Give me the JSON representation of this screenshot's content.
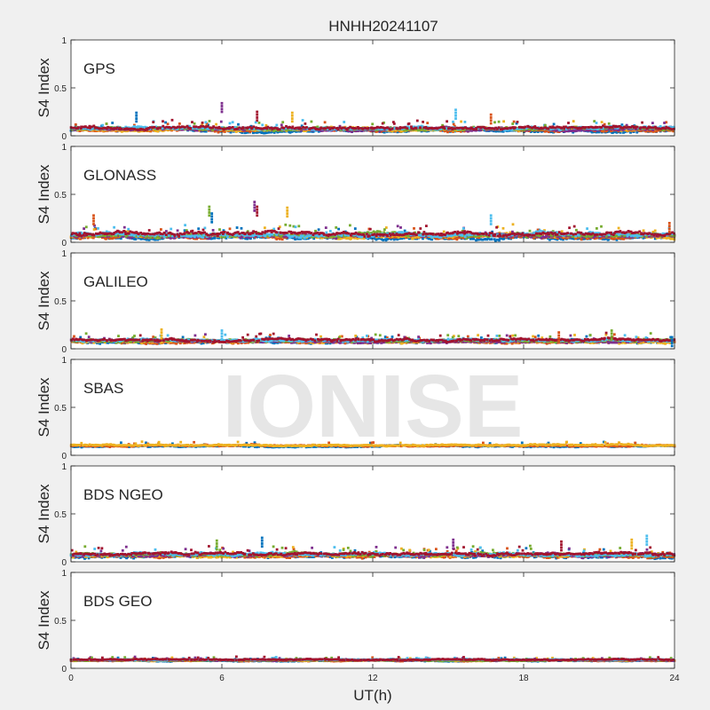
{
  "title": "HNHH20241107",
  "watermark": "IONISE",
  "colors": {
    "background": "#f0f0f0",
    "axes_bg": "#ffffff",
    "axis": "#262626",
    "watermark": "#e6e6e6",
    "palette": [
      "#0072bd",
      "#d95319",
      "#edb120",
      "#7e2f8e",
      "#77ac30",
      "#4dbeee",
      "#a2142f"
    ]
  },
  "chart_data": {
    "type": "scatter",
    "x_unit": "hours",
    "xlim": [
      0,
      24
    ],
    "xticks": [
      0,
      6,
      12,
      18,
      24
    ],
    "xlabel": "UT(h)",
    "shared_x_axis": true,
    "panels": [
      {
        "name": "GPS",
        "ylabel": "S4 Index",
        "ylim": [
          0,
          1
        ],
        "yticks": [
          0,
          0.5,
          1
        ],
        "typical_range": [
          0.03,
          0.15
        ],
        "base": 0.07,
        "spread": 0.04,
        "series_count": 7,
        "notable_points": [
          {
            "x": 2.6,
            "y": 0.24
          },
          {
            "x": 6.0,
            "y": 0.34
          },
          {
            "x": 7.4,
            "y": 0.25
          },
          {
            "x": 8.8,
            "y": 0.24
          },
          {
            "x": 15.3,
            "y": 0.27
          },
          {
            "x": 16.7,
            "y": 0.22
          }
        ]
      },
      {
        "name": "GLONASS",
        "ylabel": "S4 Index",
        "ylim": [
          0,
          1
        ],
        "yticks": [
          0,
          0.5,
          1
        ],
        "typical_range": [
          0.03,
          0.18
        ],
        "base": 0.07,
        "spread": 0.05,
        "series_count": 7,
        "notable_points": [
          {
            "x": 0.9,
            "y": 0.28
          },
          {
            "x": 5.5,
            "y": 0.37
          },
          {
            "x": 5.6,
            "y": 0.3
          },
          {
            "x": 7.3,
            "y": 0.42
          },
          {
            "x": 7.4,
            "y": 0.37
          },
          {
            "x": 8.6,
            "y": 0.36
          },
          {
            "x": 16.7,
            "y": 0.28
          },
          {
            "x": 23.8,
            "y": 0.2
          }
        ]
      },
      {
        "name": "GALILEO",
        "ylabel": "S4 Index",
        "ylim": [
          0,
          1
        ],
        "yticks": [
          0,
          0.5,
          1
        ],
        "typical_range": [
          0.04,
          0.16
        ],
        "base": 0.08,
        "spread": 0.035,
        "series_count": 7,
        "notable_points": [
          {
            "x": 3.6,
            "y": 0.2
          },
          {
            "x": 6.0,
            "y": 0.19
          },
          {
            "x": 19.4,
            "y": 0.17
          },
          {
            "x": 21.5,
            "y": 0.19
          },
          {
            "x": 23.9,
            "y": 0.12
          }
        ]
      },
      {
        "name": "SBAS",
        "ylabel": "S4 Index",
        "ylim": [
          0,
          1
        ],
        "yticks": [
          0,
          0.5,
          1
        ],
        "typical_range": [
          0.06,
          0.15
        ],
        "base": 0.1,
        "spread": 0.02,
        "series_count": 3,
        "notable_points": []
      },
      {
        "name": "BDS NGEO",
        "ylabel": "S4 Index",
        "ylim": [
          0,
          1
        ],
        "yticks": [
          0,
          0.5,
          1
        ],
        "typical_range": [
          0.03,
          0.17
        ],
        "base": 0.07,
        "spread": 0.04,
        "series_count": 7,
        "notable_points": [
          {
            "x": 5.8,
            "y": 0.22
          },
          {
            "x": 7.6,
            "y": 0.25
          },
          {
            "x": 15.2,
            "y": 0.23
          },
          {
            "x": 19.5,
            "y": 0.21
          },
          {
            "x": 22.3,
            "y": 0.23
          },
          {
            "x": 22.9,
            "y": 0.27
          }
        ]
      },
      {
        "name": "BDS GEO",
        "ylabel": "S4 Index",
        "ylim": [
          0,
          1
        ],
        "yticks": [
          0,
          0.5,
          1
        ],
        "typical_range": [
          0.05,
          0.14
        ],
        "base": 0.085,
        "spread": 0.015,
        "series_count": 7,
        "notable_points": []
      }
    ]
  }
}
